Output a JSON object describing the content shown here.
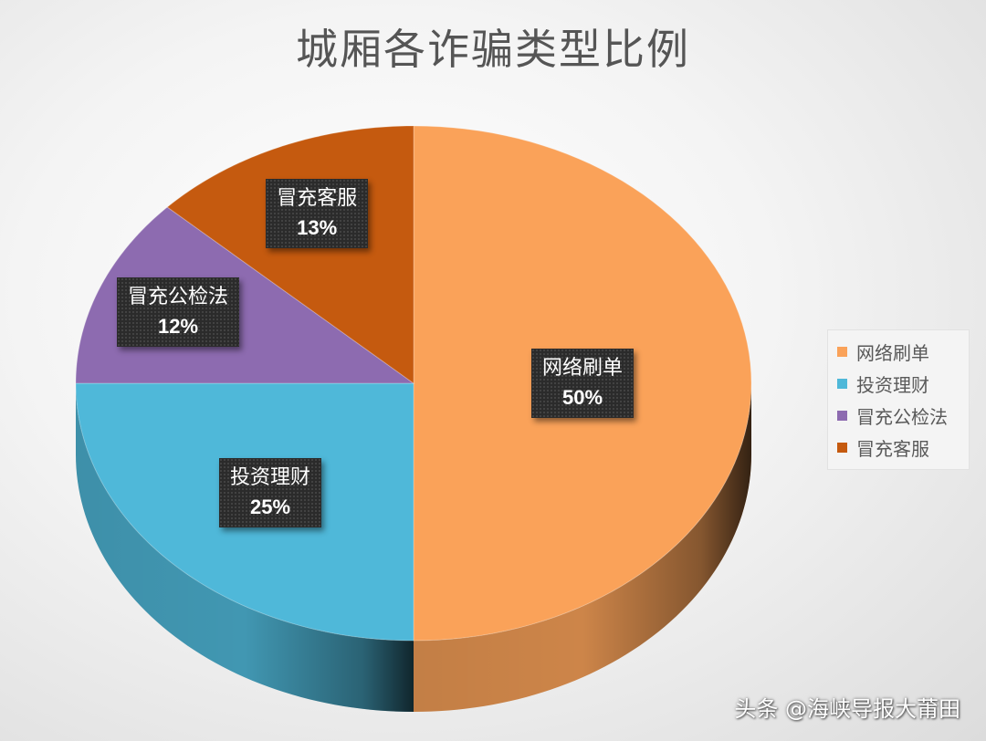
{
  "chart_data": {
    "type": "pie",
    "title": "城厢各诈骗类型比例",
    "categories": [
      "网络刷单",
      "投资理财",
      "冒充公检法",
      "冒充客服"
    ],
    "values": [
      50,
      25,
      12,
      13
    ],
    "labels": [
      "50%",
      "25%",
      "12%",
      "13%"
    ],
    "colors": [
      "#FAA259",
      "#4FB8D9",
      "#8D6BB0",
      "#C55A0F"
    ],
    "style": "3d",
    "legend_position": "right"
  },
  "watermark": "头条 @海峡导报大莆田"
}
